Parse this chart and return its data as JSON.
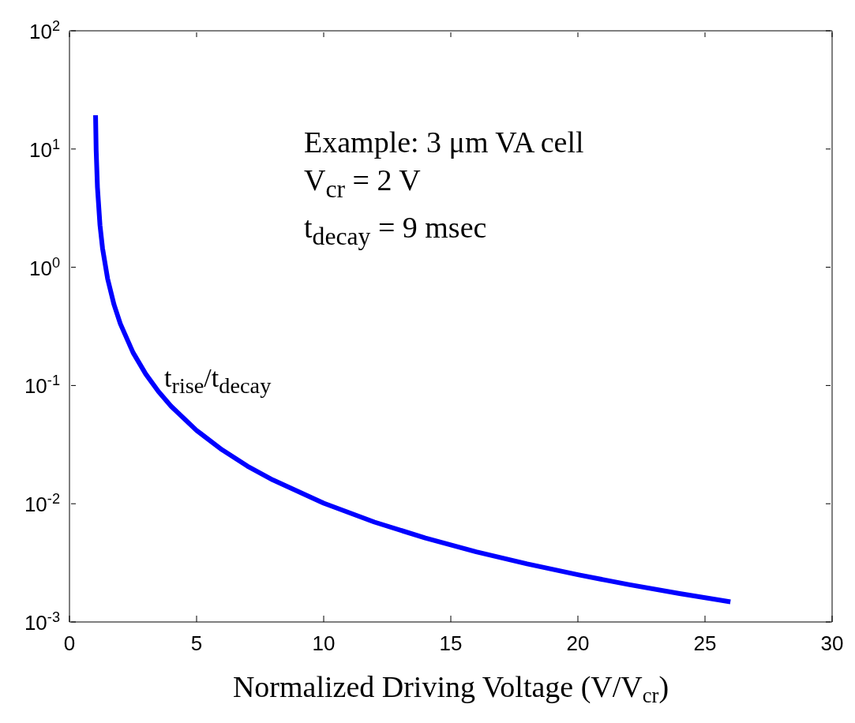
{
  "chart_data": {
    "type": "line",
    "xlabel": "Normalized Driving Voltage (V/V$_{cr}$)",
    "log": "y",
    "xlim": [
      0,
      30
    ],
    "xticks": [
      0,
      5,
      10,
      15,
      20,
      25,
      30
    ],
    "ylim": [
      0.001,
      100
    ],
    "yticks": [
      {
        "value": 0.001,
        "label": "10$^{-3}$"
      },
      {
        "value": 0.01,
        "label": "10$^{-2}$"
      },
      {
        "value": 0.1,
        "label": "10$^{-1}$"
      },
      {
        "value": 1,
        "label": "10$^{0}$"
      },
      {
        "value": 10,
        "label": "10$^{1}$"
      },
      {
        "value": 100,
        "label": "10$^{2}$"
      }
    ],
    "series": [
      {
        "color": "#0000ff",
        "x": [
          1.026,
          1.05,
          1.1,
          1.2,
          1.3,
          1.5,
          1.75,
          2,
          2.5,
          3,
          3.5,
          4,
          5,
          6,
          7,
          8,
          10,
          12,
          14,
          16,
          18,
          20,
          22,
          24,
          26
        ],
        "values": [
          19.3,
          9.76,
          4.76,
          2.27,
          1.45,
          0.8,
          0.485,
          0.333,
          0.19,
          0.125,
          0.0889,
          0.0667,
          0.0417,
          0.0286,
          0.0208,
          0.0159,
          0.0101,
          0.00699,
          0.00513,
          0.00392,
          0.0031,
          0.00251,
          0.00207,
          0.00174,
          0.00148
        ]
      }
    ],
    "annotations": [
      "Example: 3 μm VA cell",
      "V$_{cr}$ = 2 V",
      "t$_{decay}$ = 9 msec",
      "t$_{rise}$/t$_{decay}$"
    ]
  }
}
